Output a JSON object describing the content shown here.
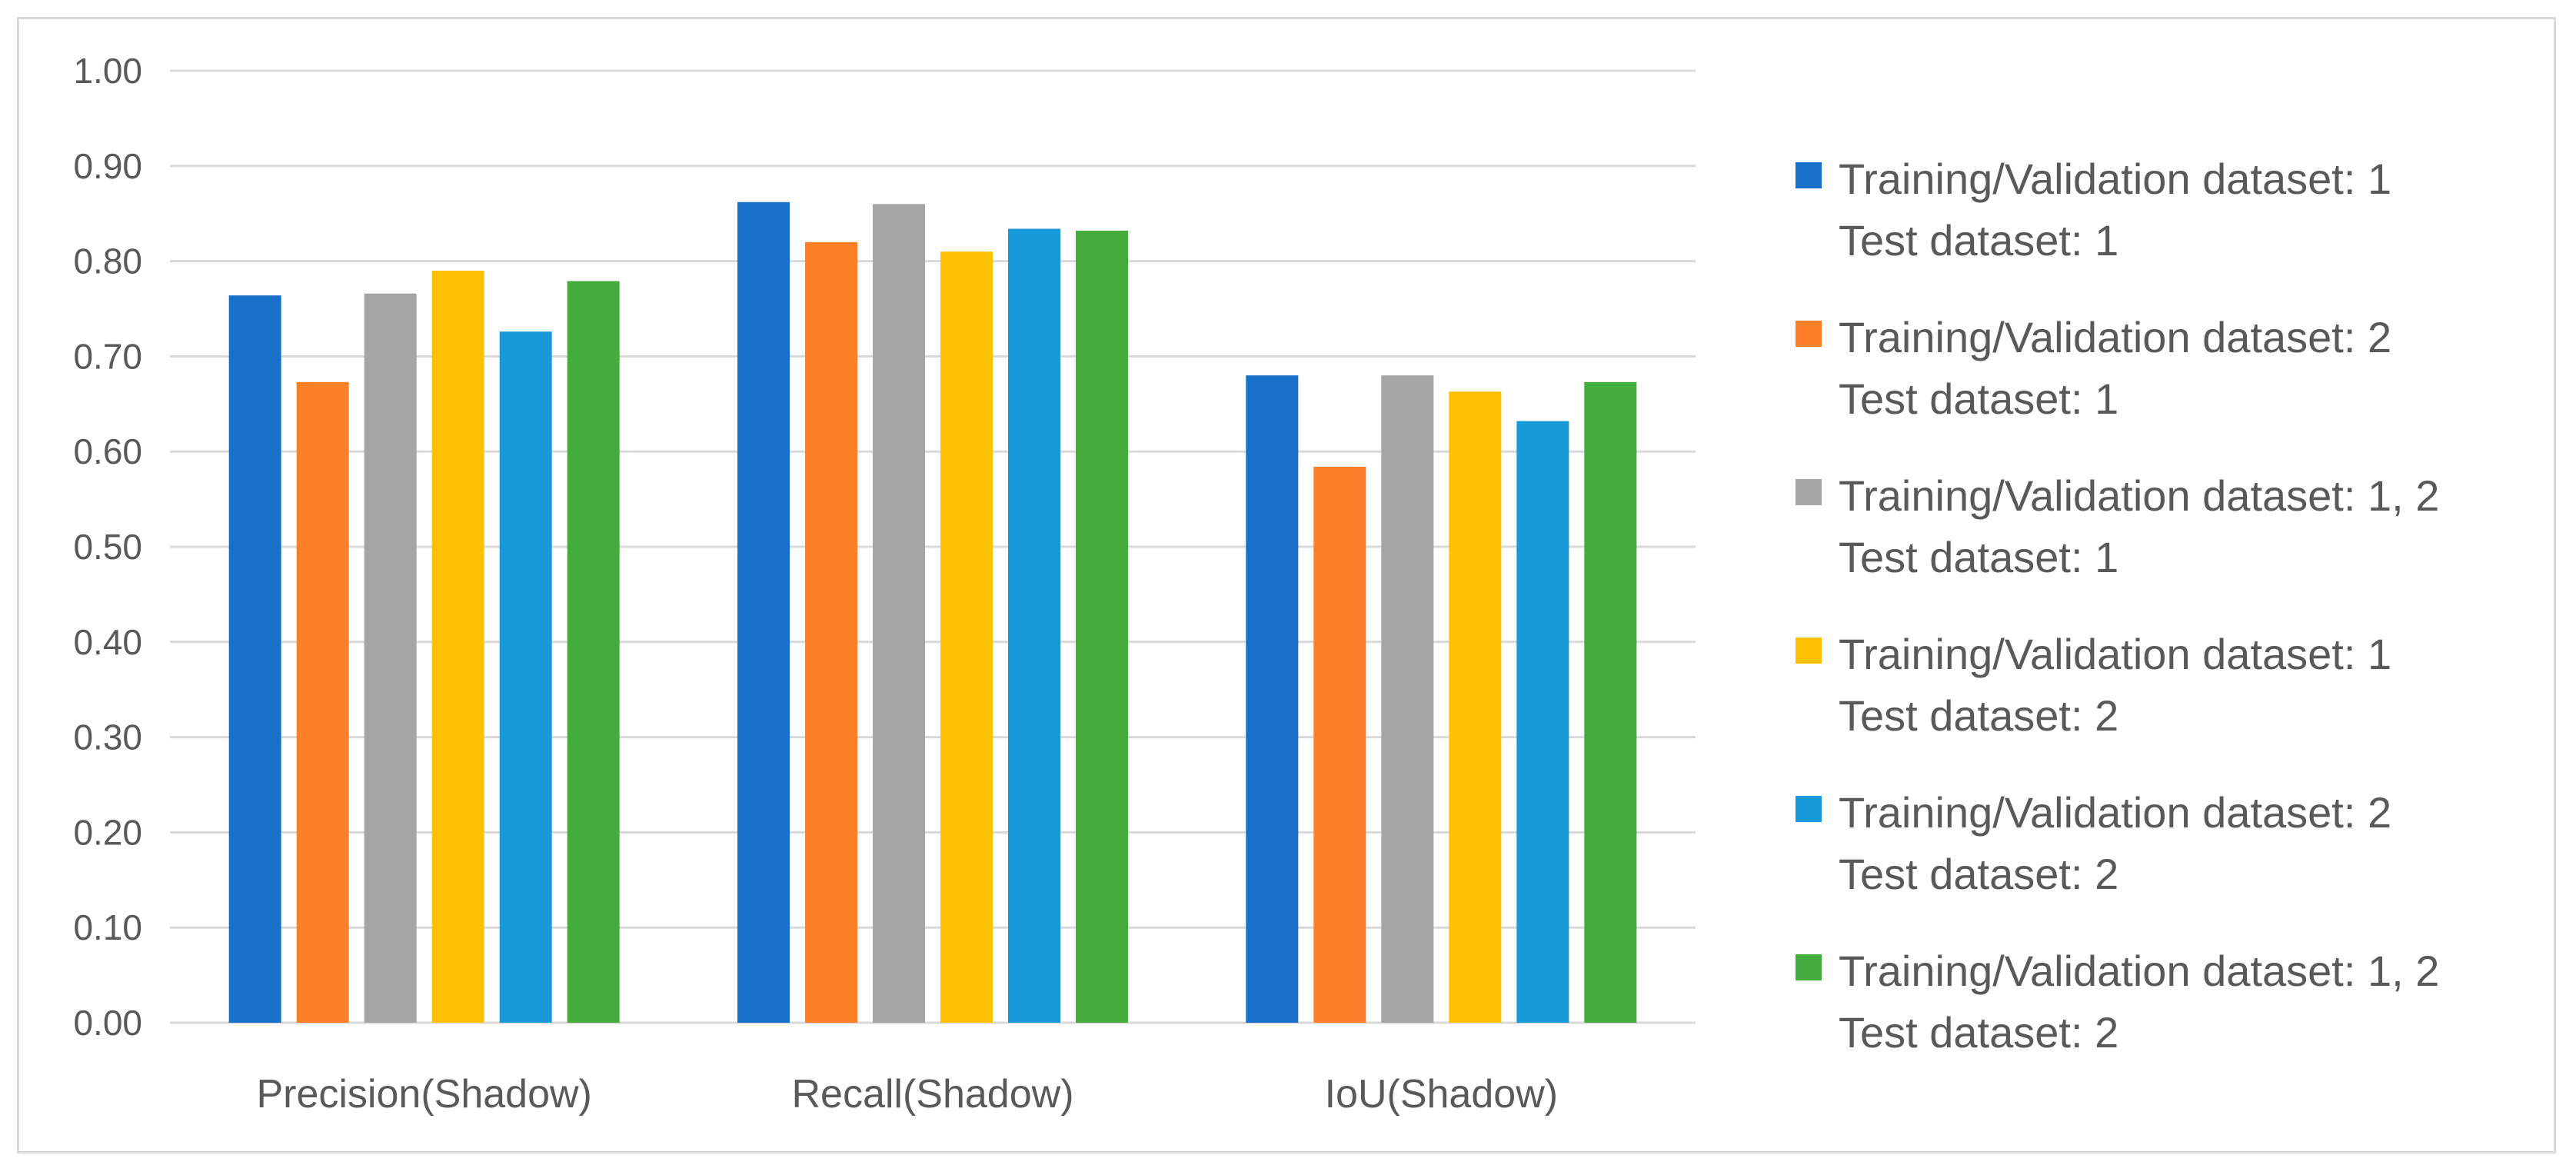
{
  "chart_data": {
    "type": "bar",
    "categories": [
      "Precision(Shadow)",
      "Recall(Shadow)",
      "IoU(Shadow)"
    ],
    "ylim": [
      0,
      1.0
    ],
    "yticks": [
      "0.00",
      "0.10",
      "0.20",
      "0.30",
      "0.40",
      "0.50",
      "0.60",
      "0.70",
      "0.80",
      "0.90",
      "1.00"
    ],
    "grid": true,
    "legend_position": "right",
    "series": [
      {
        "name": "Training/Validation dataset: 1",
        "test": "Test dataset: 1",
        "color": "#1870c9",
        "values": [
          0.764,
          0.862,
          0.68
        ]
      },
      {
        "name": "Training/Validation dataset: 2",
        "test": "Test dataset: 1",
        "color": "#fd7f27",
        "values": [
          0.673,
          0.82,
          0.584
        ]
      },
      {
        "name": "Training/Validation dataset: 1, 2",
        "test": "Test dataset: 1",
        "color": "#a5a5a5",
        "values": [
          0.766,
          0.86,
          0.68
        ]
      },
      {
        "name": "Training/Validation dataset: 1",
        "test": "Test dataset: 2",
        "color": "#ffc000",
        "values": [
          0.79,
          0.81,
          0.663
        ]
      },
      {
        "name": "Training/Validation dataset: 2",
        "test": "Test dataset: 2",
        "color": "#199ad8",
        "values": [
          0.726,
          0.834,
          0.632
        ]
      },
      {
        "name": "Training/Validation dataset: 1, 2",
        "test": "Test dataset: 2",
        "color": "#44ac3c",
        "values": [
          0.779,
          0.832,
          0.673
        ]
      }
    ]
  }
}
